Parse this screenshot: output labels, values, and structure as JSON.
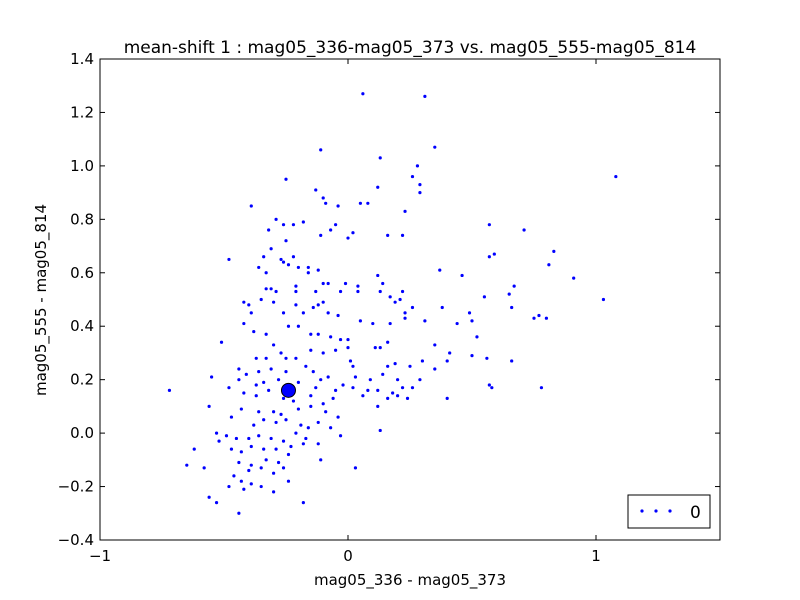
{
  "chart_data": {
    "type": "scatter",
    "title": "mean-shift 1 : mag05_336-mag05_373 vs. mag05_555-mag05_814",
    "xlabel": "mag05_336 - mag05_373",
    "ylabel": "mag05_555 - mag05_814",
    "xlim": [
      -1,
      1.5
    ],
    "ylim": [
      -0.4,
      1.4
    ],
    "xticks": [
      -1,
      0,
      1
    ],
    "xtick_labels": [
      "−1",
      "0",
      "1"
    ],
    "yticks": [
      -0.4,
      -0.2,
      0.0,
      0.2,
      0.4,
      0.6,
      0.8,
      1.0,
      1.2,
      1.4
    ],
    "ytick_labels": [
      "−0.4",
      "−0.2",
      "0.0",
      "0.2",
      "0.4",
      "0.6",
      "0.8",
      "1.0",
      "1.2",
      "1.4"
    ],
    "grid": false,
    "legend": {
      "position": "bottom-right",
      "entries": [
        "0"
      ]
    },
    "point_color": "#0000ff",
    "series": [
      {
        "name": "0",
        "points": [
          [
            0.06,
            1.27
          ],
          [
            0.31,
            1.26
          ],
          [
            0.35,
            1.07
          ],
          [
            -0.11,
            1.06
          ],
          [
            0.13,
            1.03
          ],
          [
            0.28,
            1.0
          ],
          [
            0.26,
            0.96
          ],
          [
            -0.25,
            0.95
          ],
          [
            1.08,
            0.96
          ],
          [
            0.29,
            0.93
          ],
          [
            0.12,
            0.92
          ],
          [
            -0.13,
            0.91
          ],
          [
            0.29,
            0.9
          ],
          [
            -0.1,
            0.88
          ],
          [
            -0.09,
            0.86
          ],
          [
            0.05,
            0.86
          ],
          [
            0.08,
            0.86
          ],
          [
            -0.04,
            0.85
          ],
          [
            -0.39,
            0.85
          ],
          [
            0.23,
            0.83
          ],
          [
            -0.29,
            0.8
          ],
          [
            -0.18,
            0.79
          ],
          [
            -0.22,
            0.78
          ],
          [
            -0.26,
            0.78
          ],
          [
            -0.05,
            0.78
          ],
          [
            -0.07,
            0.76
          ],
          [
            0.57,
            0.78
          ],
          [
            0.71,
            0.76
          ],
          [
            -0.32,
            0.76
          ],
          [
            0.0,
            0.73
          ],
          [
            0.02,
            0.75
          ],
          [
            0.22,
            0.74
          ],
          [
            0.16,
            0.74
          ],
          [
            -0.11,
            0.74
          ],
          [
            -0.25,
            0.72
          ],
          [
            -0.31,
            0.69
          ],
          [
            0.59,
            0.67
          ],
          [
            0.57,
            0.66
          ],
          [
            0.83,
            0.68
          ],
          [
            0.81,
            0.63
          ],
          [
            -0.48,
            0.65
          ],
          [
            -0.27,
            0.65
          ],
          [
            -0.26,
            0.64
          ],
          [
            -0.24,
            0.63
          ],
          [
            -0.22,
            0.66
          ],
          [
            -0.34,
            0.66
          ],
          [
            -0.36,
            0.62
          ],
          [
            -0.33,
            0.6
          ],
          [
            -0.2,
            0.62
          ],
          [
            -0.16,
            0.62
          ],
          [
            -0.16,
            0.6
          ],
          [
            -0.12,
            0.61
          ],
          [
            0.37,
            0.61
          ],
          [
            0.46,
            0.59
          ],
          [
            0.91,
            0.58
          ],
          [
            0.12,
            0.59
          ],
          [
            0.14,
            0.56
          ],
          [
            0.67,
            0.55
          ],
          [
            -0.21,
            0.55
          ],
          [
            -0.1,
            0.56
          ],
          [
            -0.08,
            0.56
          ],
          [
            0.04,
            0.55
          ],
          [
            0.04,
            0.53
          ],
          [
            -0.01,
            0.56
          ],
          [
            0.65,
            0.52
          ],
          [
            1.03,
            0.5
          ],
          [
            0.55,
            0.51
          ],
          [
            -0.31,
            0.54
          ],
          [
            -0.33,
            0.54
          ],
          [
            -0.29,
            0.53
          ],
          [
            -0.21,
            0.53
          ],
          [
            -0.13,
            0.53
          ],
          [
            -0.03,
            0.53
          ],
          [
            0.13,
            0.53
          ],
          [
            0.17,
            0.51
          ],
          [
            0.22,
            0.53
          ],
          [
            -0.35,
            0.5
          ],
          [
            -0.42,
            0.49
          ],
          [
            -0.4,
            0.48
          ],
          [
            -0.3,
            0.49
          ],
          [
            -0.21,
            0.48
          ],
          [
            -0.14,
            0.47
          ],
          [
            -0.12,
            0.48
          ],
          [
            -0.1,
            0.49
          ],
          [
            0.19,
            0.49
          ],
          [
            0.21,
            0.5
          ],
          [
            0.23,
            0.45
          ],
          [
            0.26,
            0.47
          ],
          [
            0.38,
            0.47
          ],
          [
            0.49,
            0.45
          ],
          [
            0.66,
            0.47
          ],
          [
            -0.39,
            0.45
          ],
          [
            -0.26,
            0.45
          ],
          [
            -0.18,
            0.45
          ],
          [
            -0.08,
            0.45
          ],
          [
            -0.04,
            0.44
          ],
          [
            0.05,
            0.42
          ],
          [
            0.1,
            0.41
          ],
          [
            0.17,
            0.41
          ],
          [
            0.23,
            0.43
          ],
          [
            0.31,
            0.42
          ],
          [
            0.44,
            0.41
          ],
          [
            0.5,
            0.42
          ],
          [
            0.75,
            0.43
          ],
          [
            0.77,
            0.44
          ],
          [
            0.8,
            0.43
          ],
          [
            -0.51,
            0.34
          ],
          [
            -0.42,
            0.41
          ],
          [
            -0.38,
            0.38
          ],
          [
            -0.33,
            0.37
          ],
          [
            -0.24,
            0.4
          ],
          [
            -0.2,
            0.4
          ],
          [
            -0.15,
            0.37
          ],
          [
            -0.12,
            0.37
          ],
          [
            -0.07,
            0.36
          ],
          [
            -0.03,
            0.35
          ],
          [
            0.0,
            0.35
          ],
          [
            0.0,
            0.32
          ],
          [
            -0.05,
            0.31
          ],
          [
            0.11,
            0.32
          ],
          [
            0.13,
            0.32
          ],
          [
            0.16,
            0.34
          ],
          [
            0.35,
            0.33
          ],
          [
            0.52,
            0.36
          ],
          [
            -0.3,
            0.33
          ],
          [
            -0.27,
            0.3
          ],
          [
            -0.25,
            0.28
          ],
          [
            -0.33,
            0.28
          ],
          [
            -0.37,
            0.28
          ],
          [
            -0.21,
            0.28
          ],
          [
            -0.15,
            0.31
          ],
          [
            -0.1,
            0.3
          ],
          [
            0.01,
            0.27
          ],
          [
            0.02,
            0.25
          ],
          [
            0.16,
            0.25
          ],
          [
            0.19,
            0.26
          ],
          [
            0.25,
            0.25
          ],
          [
            0.3,
            0.27
          ],
          [
            0.35,
            0.24
          ],
          [
            0.4,
            0.27
          ],
          [
            0.41,
            0.3
          ],
          [
            0.5,
            0.29
          ],
          [
            0.56,
            0.28
          ],
          [
            0.66,
            0.27
          ],
          [
            -0.44,
            0.24
          ],
          [
            -0.41,
            0.22
          ],
          [
            -0.36,
            0.23
          ],
          [
            -0.31,
            0.24
          ],
          [
            -0.25,
            0.23
          ],
          [
            -0.17,
            0.25
          ],
          [
            -0.14,
            0.23
          ],
          [
            -0.11,
            0.2
          ],
          [
            -0.08,
            0.21
          ],
          [
            0.03,
            0.21
          ],
          [
            0.09,
            0.2
          ],
          [
            0.14,
            0.22
          ],
          [
            0.2,
            0.2
          ],
          [
            0.29,
            0.2
          ],
          [
            -0.55,
            0.21
          ],
          [
            -0.48,
            0.17
          ],
          [
            -0.44,
            0.2
          ],
          [
            -0.37,
            0.18
          ],
          [
            -0.34,
            0.19
          ],
          [
            -0.28,
            0.2
          ],
          [
            -0.23,
            0.17
          ],
          [
            -0.2,
            0.19
          ],
          [
            -0.13,
            0.17
          ],
          [
            -0.05,
            0.16
          ],
          [
            -0.02,
            0.18
          ],
          [
            0.02,
            0.17
          ],
          [
            0.08,
            0.16
          ],
          [
            0.12,
            0.16
          ],
          [
            0.18,
            0.15
          ],
          [
            0.22,
            0.17
          ],
          [
            0.26,
            0.17
          ],
          [
            0.57,
            0.18
          ],
          [
            0.58,
            0.17
          ],
          [
            0.78,
            0.17
          ],
          [
            -0.72,
            0.16
          ],
          [
            -0.42,
            0.15
          ],
          [
            -0.37,
            0.14
          ],
          [
            -0.32,
            0.16
          ],
          [
            -0.26,
            0.13
          ],
          [
            -0.22,
            0.12
          ],
          [
            -0.15,
            0.14
          ],
          [
            -0.1,
            0.11
          ],
          [
            -0.06,
            0.13
          ],
          [
            0.06,
            0.14
          ],
          [
            0.12,
            0.1
          ],
          [
            0.16,
            0.13
          ],
          [
            0.2,
            0.14
          ],
          [
            0.24,
            0.13
          ],
          [
            0.4,
            0.13
          ],
          [
            -0.56,
            0.1
          ],
          [
            -0.43,
            0.09
          ],
          [
            -0.36,
            0.08
          ],
          [
            -0.3,
            0.08
          ],
          [
            -0.27,
            0.07
          ],
          [
            -0.2,
            0.09
          ],
          [
            -0.15,
            0.1
          ],
          [
            -0.09,
            0.08
          ],
          [
            -0.04,
            0.06
          ],
          [
            -0.47,
            0.06
          ],
          [
            -0.38,
            0.03
          ],
          [
            -0.34,
            0.05
          ],
          [
            -0.29,
            0.04
          ],
          [
            -0.25,
            0.05
          ],
          [
            -0.19,
            0.03
          ],
          [
            -0.16,
            0.02
          ],
          [
            -0.12,
            0.04
          ],
          [
            -0.07,
            0.02
          ],
          [
            0.13,
            0.01
          ],
          [
            -0.53,
            0.0
          ],
          [
            -0.49,
            -0.01
          ],
          [
            -0.45,
            -0.02
          ],
          [
            -0.4,
            -0.02
          ],
          [
            -0.36,
            -0.01
          ],
          [
            -0.31,
            -0.02
          ],
          [
            -0.26,
            -0.03
          ],
          [
            -0.21,
            0.0
          ],
          [
            -0.17,
            -0.02
          ],
          [
            -0.12,
            -0.04
          ],
          [
            -0.03,
            -0.01
          ],
          [
            -0.52,
            -0.03
          ],
          [
            -0.47,
            -0.06
          ],
          [
            -0.43,
            -0.07
          ],
          [
            -0.39,
            -0.05
          ],
          [
            -0.34,
            -0.06
          ],
          [
            -0.29,
            -0.06
          ],
          [
            -0.23,
            -0.05
          ],
          [
            -0.18,
            -0.04
          ],
          [
            -0.62,
            -0.06
          ],
          [
            -0.44,
            -0.11
          ],
          [
            -0.39,
            -0.12
          ],
          [
            -0.33,
            -0.1
          ],
          [
            -0.28,
            -0.11
          ],
          [
            -0.24,
            -0.08
          ],
          [
            -0.11,
            -0.1
          ],
          [
            0.03,
            -0.13
          ],
          [
            -0.65,
            -0.12
          ],
          [
            -0.58,
            -0.13
          ],
          [
            -0.4,
            -0.14
          ],
          [
            -0.35,
            -0.13
          ],
          [
            -0.3,
            -0.15
          ],
          [
            -0.26,
            -0.13
          ],
          [
            -0.46,
            -0.16
          ],
          [
            -0.43,
            -0.18
          ],
          [
            -0.39,
            -0.19
          ],
          [
            -0.48,
            -0.2
          ],
          [
            -0.42,
            -0.21
          ],
          [
            -0.35,
            -0.2
          ],
          [
            -0.24,
            -0.18
          ],
          [
            -0.3,
            -0.22
          ],
          [
            -0.56,
            -0.24
          ],
          [
            -0.53,
            -0.26
          ],
          [
            -0.18,
            -0.26
          ],
          [
            -0.44,
            -0.3
          ]
        ]
      }
    ],
    "highlight": {
      "label": "cluster-center",
      "point": [
        -0.24,
        0.16
      ],
      "color": "#0000ff"
    }
  }
}
